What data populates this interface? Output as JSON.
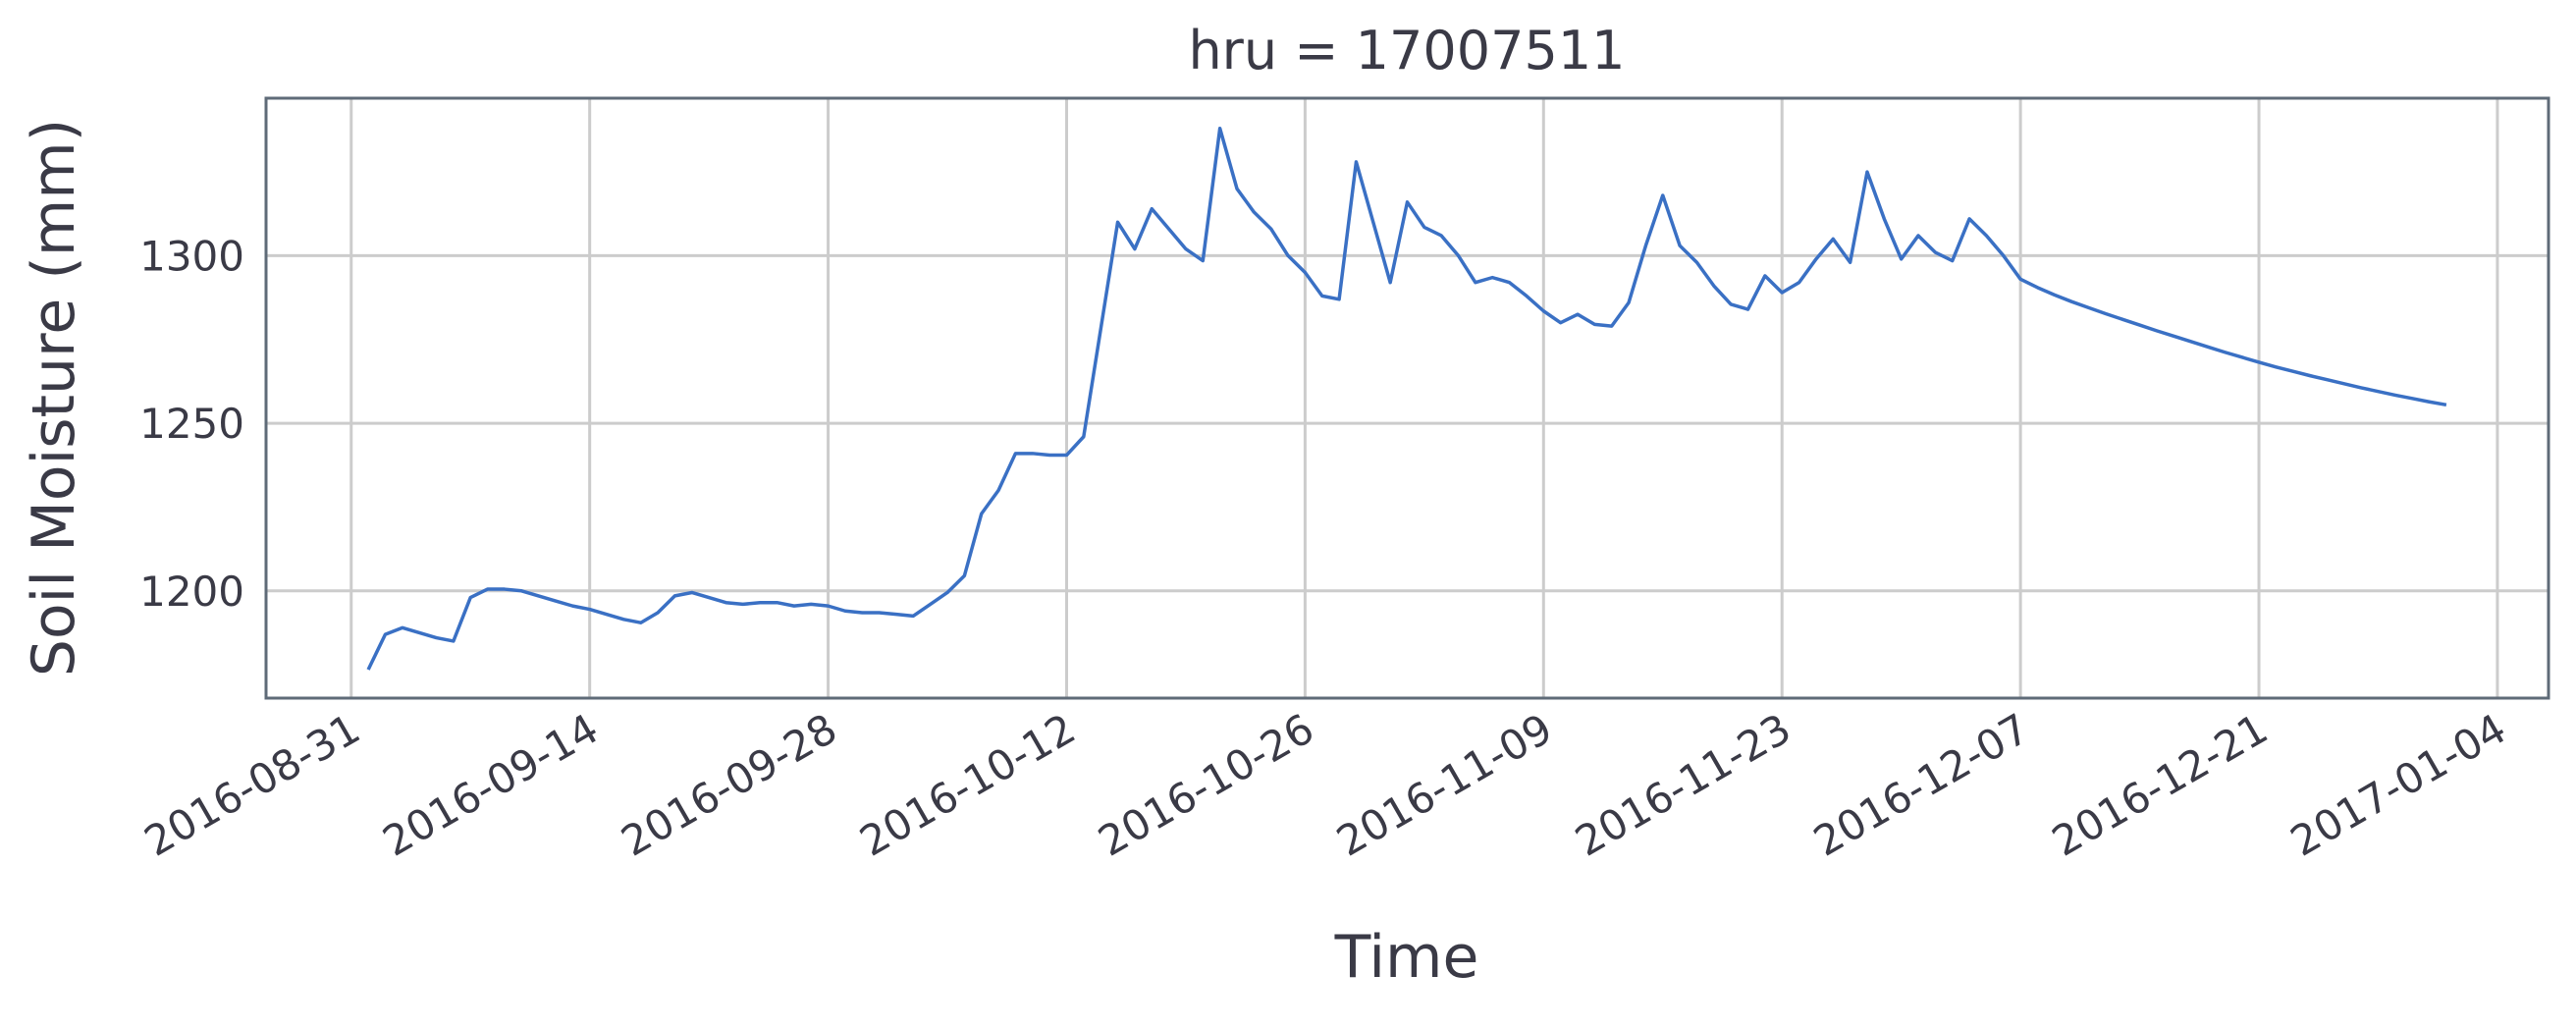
{
  "chart_data": {
    "type": "line",
    "title": "hru = 17007511",
    "xlabel": "Time",
    "ylabel": "Soil Moisture (mm)",
    "x": [
      "2016-09-01",
      "2016-09-02",
      "2016-09-03",
      "2016-09-04",
      "2016-09-05",
      "2016-09-06",
      "2016-09-07",
      "2016-09-08",
      "2016-09-09",
      "2016-09-10",
      "2016-09-11",
      "2016-09-12",
      "2016-09-13",
      "2016-09-14",
      "2016-09-15",
      "2016-09-16",
      "2016-09-17",
      "2016-09-18",
      "2016-09-19",
      "2016-09-20",
      "2016-09-21",
      "2016-09-22",
      "2016-09-23",
      "2016-09-24",
      "2016-09-25",
      "2016-09-26",
      "2016-09-27",
      "2016-09-28",
      "2016-09-29",
      "2016-09-30",
      "2016-10-01",
      "2016-10-02",
      "2016-10-03",
      "2016-10-04",
      "2016-10-05",
      "2016-10-06",
      "2016-10-07",
      "2016-10-08",
      "2016-10-09",
      "2016-10-10",
      "2016-10-11",
      "2016-10-12",
      "2016-10-13",
      "2016-10-14",
      "2016-10-15",
      "2016-10-16",
      "2016-10-17",
      "2016-10-18",
      "2016-10-19",
      "2016-10-20",
      "2016-10-21",
      "2016-10-22",
      "2016-10-23",
      "2016-10-24",
      "2016-10-25",
      "2016-10-26",
      "2016-10-27",
      "2016-10-28",
      "2016-10-29",
      "2016-10-30",
      "2016-10-31",
      "2016-11-01",
      "2016-11-02",
      "2016-11-03",
      "2016-11-04",
      "2016-11-05",
      "2016-11-06",
      "2016-11-07",
      "2016-11-08",
      "2016-11-09",
      "2016-11-10",
      "2016-11-11",
      "2016-11-12",
      "2016-11-13",
      "2016-11-14",
      "2016-11-15",
      "2016-11-16",
      "2016-11-17",
      "2016-11-18",
      "2016-11-19",
      "2016-11-20",
      "2016-11-21",
      "2016-11-22",
      "2016-11-23",
      "2016-11-24",
      "2016-11-25",
      "2016-11-26",
      "2016-11-27",
      "2016-11-28",
      "2016-11-29",
      "2016-11-30",
      "2016-12-01",
      "2016-12-02",
      "2016-12-03",
      "2016-12-04",
      "2016-12-05",
      "2016-12-06",
      "2016-12-07",
      "2016-12-08",
      "2016-12-09",
      "2016-12-10",
      "2016-12-11",
      "2016-12-12",
      "2016-12-13",
      "2016-12-14",
      "2016-12-15",
      "2016-12-16",
      "2016-12-17",
      "2016-12-18",
      "2016-12-19",
      "2016-12-20",
      "2016-12-21",
      "2016-12-22",
      "2016-12-23",
      "2016-12-24",
      "2016-12-25",
      "2016-12-26",
      "2016-12-27",
      "2016-12-28",
      "2016-12-29",
      "2016-12-30",
      "2016-12-31",
      "2017-01-01"
    ],
    "values": [
      1176.5,
      1187,
      1189,
      1187.5,
      1186,
      1185,
      1198,
      1200.5,
      1200.5,
      1200,
      1198.5,
      1197,
      1195.5,
      1194.5,
      1193,
      1191.5,
      1190.5,
      1193.5,
      1198.5,
      1199.5,
      1198,
      1196.5,
      1196,
      1196.5,
      1196.5,
      1195.5,
      1196,
      1195.5,
      1194,
      1193.5,
      1193.5,
      1193,
      1192.5,
      1196,
      1199.5,
      1204.5,
      1223,
      1230,
      1241,
      1241,
      1240.5,
      1240.5,
      1246,
      1278,
      1310,
      1302,
      1314,
      1308,
      1302,
      1298.5,
      1338,
      1320,
      1313,
      1308,
      1300,
      1295,
      1288,
      1287,
      1328,
      1310,
      1292,
      1316,
      1308.5,
      1306,
      1300,
      1292,
      1293.5,
      1292,
      1288,
      1283.5,
      1280,
      1282.5,
      1279.5,
      1279,
      1286,
      1303,
      1318,
      1303,
      1298,
      1291,
      1285.5,
      1284,
      1294,
      1289,
      1292,
      1299,
      1305,
      1298,
      1325,
      1311,
      1299,
      1306,
      1301,
      1298.5,
      1311,
      1306,
      1300,
      1293,
      1290.5,
      1288.3,
      1286.3,
      1284.5,
      1282.7,
      1281,
      1279.3,
      1277.6,
      1276,
      1274.4,
      1272.8,
      1271.2,
      1269.7,
      1268.2,
      1266.8,
      1265.5,
      1264.2,
      1263,
      1261.8,
      1260.6,
      1259.5,
      1258.4,
      1257.4,
      1256.4,
      1255.5
    ],
    "color": "#3a70c4",
    "xlim": [
      "2016-08-26",
      "2017-01-07"
    ],
    "xticks": [
      "2016-08-31",
      "2016-09-14",
      "2016-09-28",
      "2016-10-12",
      "2016-10-26",
      "2016-11-09",
      "2016-11-23",
      "2016-12-07",
      "2016-12-21",
      "2017-01-04"
    ],
    "ylim": [
      1168,
      1347
    ],
    "yticks": [
      1200,
      1250,
      1300
    ],
    "grid": true
  }
}
